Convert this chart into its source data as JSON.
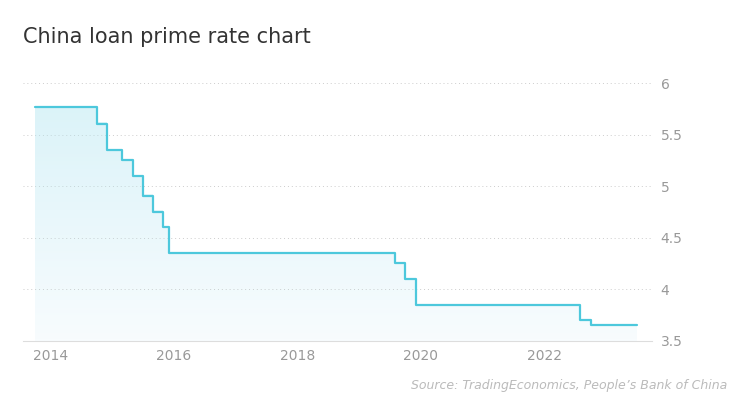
{
  "title": "China loan prime rate chart",
  "source_text": "Source: TradingEconomics, People’s Bank of China",
  "line_color": "#4dc8dc",
  "background_color": "#ffffff",
  "ylim": [
    3.5,
    6.2
  ],
  "yticks": [
    3.5,
    4.0,
    4.5,
    5.0,
    5.5,
    6.0
  ],
  "grid_color": "#cccccc",
  "x_data": [
    2013.75,
    2014.0,
    2014.583,
    2014.75,
    2014.917,
    2015.167,
    2015.333,
    2015.5,
    2015.667,
    2015.833,
    2015.917,
    2016.0,
    2016.083,
    2019.417,
    2019.583,
    2019.75,
    2019.917,
    2020.083,
    2020.25,
    2022.0,
    2022.333,
    2022.583,
    2022.75,
    2022.917,
    2023.5
  ],
  "y_data": [
    5.77,
    5.77,
    5.77,
    5.6,
    5.35,
    5.25,
    5.1,
    4.9,
    4.75,
    4.6,
    4.35,
    4.35,
    4.35,
    4.35,
    4.25,
    4.1,
    3.85,
    3.85,
    3.85,
    3.85,
    3.85,
    3.7,
    3.65,
    3.65,
    3.65
  ],
  "title_fontsize": 15,
  "tick_fontsize": 10,
  "source_fontsize": 9,
  "line_width": 1.6,
  "spine_color": "#dddddd",
  "fill_top_color": "#b8e8f2",
  "fill_bottom_color": "#eef8fb"
}
